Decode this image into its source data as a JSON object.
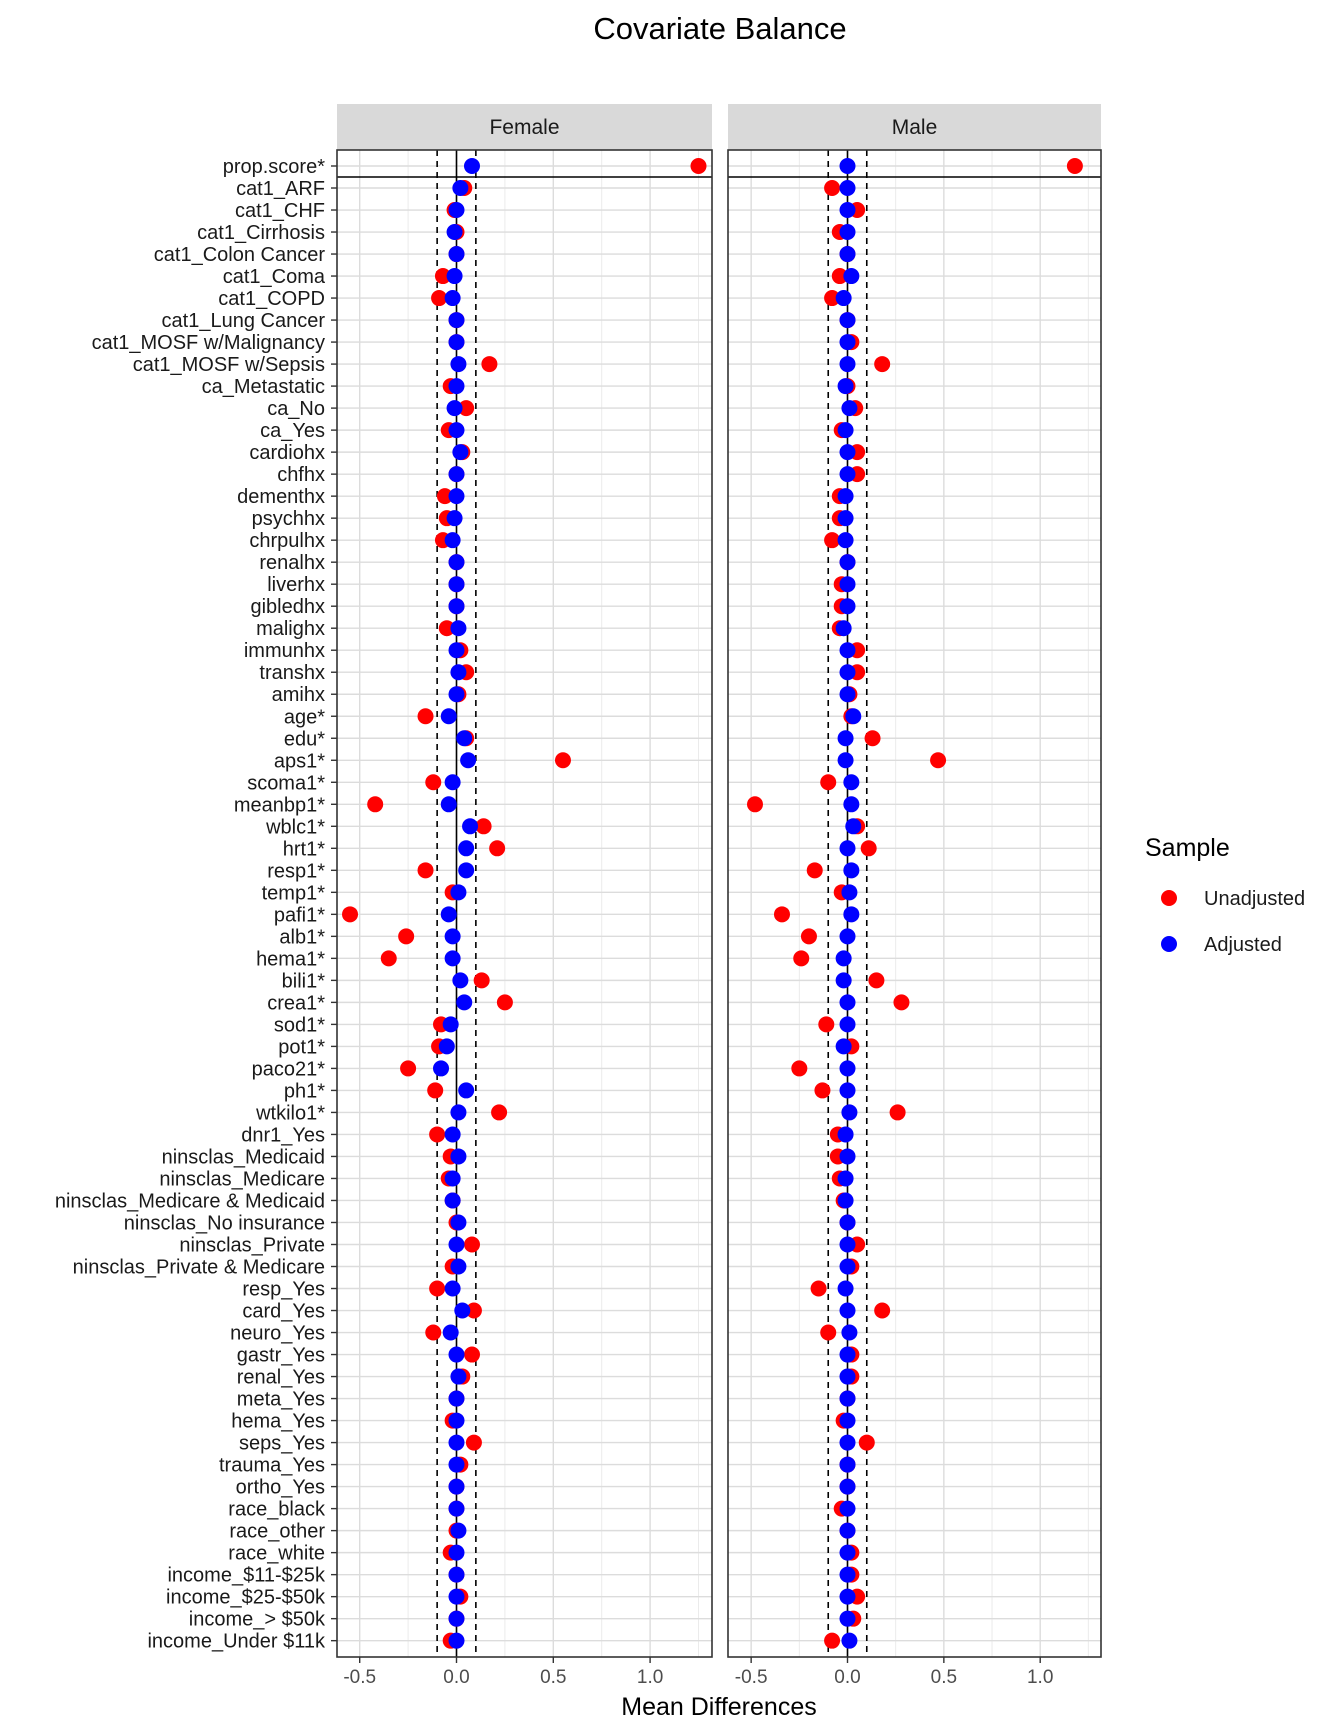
{
  "chart_data": {
    "type": "scatter",
    "title": "Covariate Balance",
    "xlabel": "Mean Differences",
    "ylabel": "",
    "xlim": [
      -0.6,
      1.35
    ],
    "xticks": [
      -0.5,
      0.0,
      0.5,
      1.0
    ],
    "xtick_labels": [
      "-0.5",
      "0.0",
      "0.5",
      "1.0"
    ],
    "threshold_lines": [
      -0.1,
      0.1
    ],
    "zero_line": 0,
    "grid": true,
    "legend": {
      "title": "Sample",
      "position": "right",
      "entries": [
        {
          "name": "Unadjusted",
          "color": "#ff0000"
        },
        {
          "name": "Adjusted",
          "color": "#0000ff"
        }
      ]
    },
    "variables": [
      "prop.score*",
      "cat1_ARF",
      "cat1_CHF",
      "cat1_Cirrhosis",
      "cat1_Colon Cancer",
      "cat1_Coma",
      "cat1_COPD",
      "cat1_Lung Cancer",
      "cat1_MOSF w/Malignancy",
      "cat1_MOSF w/Sepsis",
      "ca_Metastatic",
      "ca_No",
      "ca_Yes",
      "cardiohx",
      "chfhx",
      "dementhx",
      "psychhx",
      "chrpulhx",
      "renalhx",
      "liverhx",
      "gibledhx",
      "malighx",
      "immunhx",
      "transhx",
      "amihx",
      "age*",
      "edu*",
      "aps1*",
      "scoma1*",
      "meanbp1*",
      "wblc1*",
      "hrt1*",
      "resp1*",
      "temp1*",
      "pafi1*",
      "alb1*",
      "hema1*",
      "bili1*",
      "crea1*",
      "sod1*",
      "pot1*",
      "paco21*",
      "ph1*",
      "wtkilo1*",
      "dnr1_Yes",
      "ninsclas_Medicaid",
      "ninsclas_Medicare",
      "ninsclas_Medicare & Medicaid",
      "ninsclas_No insurance",
      "ninsclas_Private",
      "ninsclas_Private & Medicare",
      "resp_Yes",
      "card_Yes",
      "neuro_Yes",
      "gastr_Yes",
      "renal_Yes",
      "meta_Yes",
      "hema_Yes",
      "seps_Yes",
      "trauma_Yes",
      "ortho_Yes",
      "race_black",
      "race_other",
      "race_white",
      "income_$11-$25k",
      "income_$25-$50k",
      "income_> $50k",
      "income_Under $11k"
    ],
    "panels": [
      {
        "name": "Female",
        "series": [
          {
            "name": "Unadjusted",
            "color": "#ff0000",
            "values": [
              1.25,
              0.04,
              -0.01,
              0.0,
              0.0,
              -0.07,
              -0.09,
              0.0,
              0.0,
              0.17,
              -0.03,
              0.05,
              -0.04,
              0.03,
              0.0,
              -0.06,
              -0.05,
              -0.07,
              0.0,
              0.0,
              0.0,
              -0.05,
              0.02,
              0.05,
              0.01,
              -0.16,
              0.05,
              0.55,
              -0.12,
              -0.42,
              0.14,
              0.21,
              -0.16,
              -0.02,
              -0.55,
              -0.26,
              -0.35,
              0.13,
              0.25,
              -0.08,
              -0.09,
              -0.25,
              -0.11,
              0.22,
              -0.1,
              -0.03,
              -0.04,
              -0.02,
              0.0,
              0.08,
              -0.02,
              -0.1,
              0.09,
              -0.12,
              0.08,
              0.03,
              0.0,
              -0.02,
              0.09,
              0.02,
              0.0,
              0.0,
              0.0,
              -0.03,
              0.0,
              0.02,
              0.0,
              -0.03
            ]
          },
          {
            "name": "Adjusted",
            "color": "#0000ff",
            "values": [
              0.08,
              0.02,
              0.0,
              -0.01,
              0.0,
              -0.01,
              -0.02,
              0.0,
              0.0,
              0.01,
              0.0,
              -0.01,
              0.0,
              0.02,
              0.0,
              0.0,
              -0.01,
              -0.02,
              0.0,
              0.0,
              0.0,
              0.01,
              0.0,
              0.01,
              0.0,
              -0.04,
              0.04,
              0.06,
              -0.02,
              -0.04,
              0.07,
              0.05,
              0.05,
              0.01,
              -0.04,
              -0.02,
              -0.02,
              0.02,
              0.04,
              -0.03,
              -0.05,
              -0.08,
              0.05,
              0.01,
              -0.02,
              0.01,
              -0.02,
              -0.02,
              0.01,
              0.0,
              0.01,
              -0.02,
              0.03,
              -0.03,
              0.0,
              0.01,
              0.0,
              0.0,
              0.0,
              0.0,
              0.0,
              0.0,
              0.01,
              0.0,
              0.0,
              0.0,
              0.0,
              0.0
            ]
          }
        ]
      },
      {
        "name": "Male",
        "series": [
          {
            "name": "Unadjusted",
            "color": "#ff0000",
            "values": [
              1.18,
              -0.08,
              0.05,
              -0.04,
              0.0,
              -0.04,
              -0.08,
              0.0,
              0.02,
              0.18,
              0.0,
              0.04,
              -0.03,
              0.05,
              0.05,
              -0.04,
              -0.04,
              -0.08,
              0.0,
              -0.03,
              -0.03,
              -0.04,
              0.05,
              0.05,
              0.01,
              0.02,
              0.13,
              0.47,
              -0.1,
              -0.48,
              0.05,
              0.11,
              -0.17,
              -0.03,
              -0.34,
              -0.2,
              -0.24,
              0.15,
              0.28,
              -0.11,
              0.02,
              -0.25,
              -0.13,
              0.26,
              -0.05,
              -0.05,
              -0.04,
              -0.02,
              0.0,
              0.05,
              0.02,
              -0.15,
              0.18,
              -0.1,
              0.02,
              0.02,
              0.0,
              -0.02,
              0.1,
              0.0,
              0.0,
              -0.03,
              0.0,
              0.02,
              0.02,
              0.05,
              0.03,
              -0.08
            ]
          },
          {
            "name": "Adjusted",
            "color": "#0000ff",
            "values": [
              0.0,
              0.0,
              0.0,
              0.0,
              0.0,
              0.02,
              -0.02,
              0.0,
              0.0,
              0.0,
              -0.01,
              0.01,
              -0.01,
              0.0,
              0.0,
              -0.01,
              -0.01,
              -0.01,
              0.0,
              0.0,
              0.0,
              -0.02,
              0.0,
              0.0,
              0.0,
              0.03,
              -0.01,
              -0.01,
              0.02,
              0.02,
              0.03,
              0.0,
              0.02,
              0.01,
              0.02,
              0.0,
              -0.02,
              -0.02,
              0.0,
              0.0,
              -0.02,
              0.0,
              0.0,
              0.01,
              -0.01,
              0.0,
              -0.01,
              -0.01,
              0.0,
              0.0,
              0.0,
              -0.01,
              0.0,
              0.01,
              0.0,
              0.0,
              0.0,
              0.0,
              0.0,
              0.0,
              0.0,
              0.0,
              0.0,
              0.0,
              0.0,
              0.0,
              0.0,
              0.01
            ]
          }
        ]
      }
    ]
  }
}
